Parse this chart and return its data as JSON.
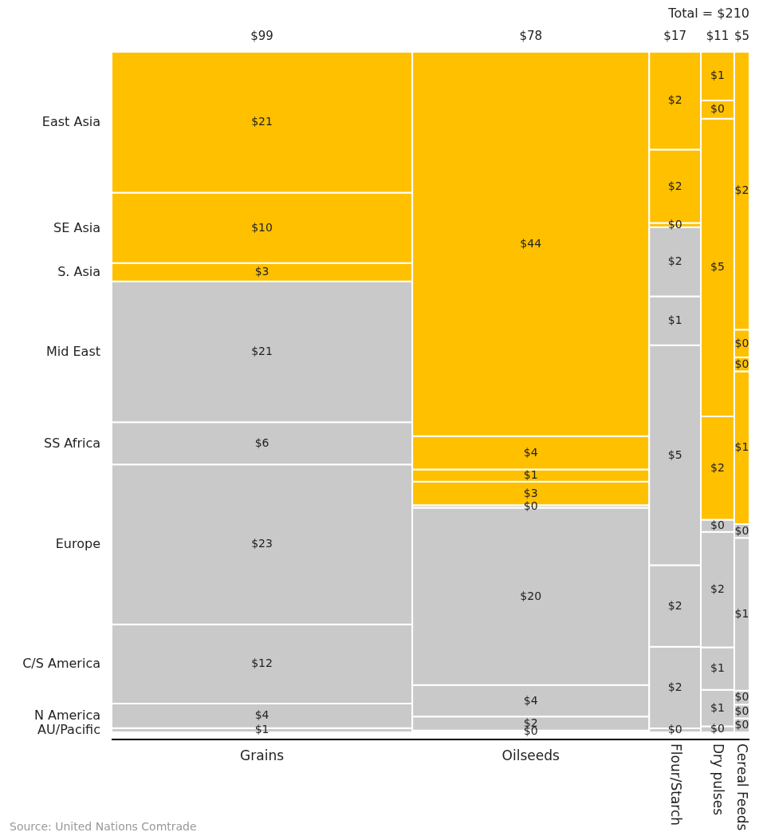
{
  "chart_data": {
    "type": "other",
    "title": "Total = $210",
    "categories": [
      "Grains",
      "Oilseeds",
      "Flour/Starch",
      "Dry pulses",
      "Cereal Feeds"
    ],
    "values": [
      99,
      78,
      17,
      11,
      5
    ],
    "value_labels": [
      "$99",
      "$78",
      "$17",
      "$11",
      "$5"
    ],
    "series": [
      {
        "name": "AU/Pacific",
        "values": [
          0.6,
          0.2,
          0.1,
          0.1,
          0.1
        ],
        "value_labels": [
          "$1",
          "$0",
          "$0",
          "$0",
          "$0"
        ],
        "colors": [
          "#c9c9c9",
          "#c9c9c9",
          "#c9c9c9",
          "#c9c9c9",
          "#c9c9c9"
        ]
      },
      {
        "name": "N America",
        "values": [
          3.6,
          1.6,
          2.0,
          0.6,
          0.1
        ],
        "value_labels": [
          "$4",
          "$2",
          "$2",
          "$1",
          "$0"
        ],
        "colors": [
          "#c9c9c9",
          "#c9c9c9",
          "#c9c9c9",
          "#c9c9c9",
          "#c9c9c9"
        ]
      },
      {
        "name": "C/S America",
        "values": [
          11.6,
          3.6,
          2.0,
          0.7,
          0.1
        ],
        "value_labels": [
          "$12",
          "$4",
          "$2",
          "$1",
          "$0"
        ],
        "colors": [
          "#c9c9c9",
          "#c9c9c9",
          "#c9c9c9",
          "#c9c9c9",
          "#c9c9c9"
        ]
      },
      {
        "name": "Europe",
        "values": [
          23.4,
          20.3,
          5.4,
          1.9,
          1.1
        ],
        "value_labels": [
          "$23",
          "$20",
          "$5",
          "$2",
          "$1"
        ],
        "colors": [
          "#c9c9c9",
          "#c9c9c9",
          "#c9c9c9",
          "#c9c9c9",
          "#c9c9c9"
        ]
      },
      {
        "name": "SS Africa",
        "values": [
          6.2,
          0.3,
          1.2,
          0.2,
          0.1
        ],
        "value_labels": [
          "$6",
          "$0",
          "$1",
          "$0",
          "$0"
        ],
        "colors": [
          "#c9c9c9",
          "#c9c9c9",
          "#c9c9c9",
          "#c9c9c9",
          "#c9c9c9"
        ]
      },
      {
        "name": "Mid East",
        "values": [
          20.6,
          2.7,
          1.7,
          1.7,
          1.1
        ],
        "value_labels": [
          "$21",
          "$3",
          "$2",
          "$2",
          "$1"
        ],
        "colors": [
          "#c9c9c9",
          "#ffc000",
          "#c9c9c9",
          "#ffc000",
          "#ffc000"
        ]
      },
      {
        "name": "S. Asia",
        "values": [
          2.7,
          1.4,
          0.1,
          4.9,
          0.1
        ],
        "value_labels": [
          "$3",
          "$1",
          "$0",
          "$5",
          "$0"
        ],
        "colors": [
          "#ffc000",
          "#ffc000",
          "#ffc000",
          "#ffc000",
          "#ffc000"
        ]
      },
      {
        "name": "SE Asia",
        "values": [
          10.3,
          3.8,
          1.8,
          0.3,
          0.2
        ],
        "value_labels": [
          "$10",
          "$4",
          "$2",
          "$0",
          "$0"
        ],
        "colors": [
          "#ffc000",
          "#ffc000",
          "#ffc000",
          "#ffc000",
          "#ffc000"
        ]
      },
      {
        "name": "East Asia",
        "values": [
          20.6,
          44.0,
          2.4,
          0.8,
          2.0
        ],
        "value_labels": [
          "$21",
          "$44",
          "$2",
          "$1",
          "$2"
        ],
        "colors": [
          "#ffc000",
          "#ffc000",
          "#ffc000",
          "#ffc000",
          "#ffc000"
        ]
      }
    ],
    "annotations": [
      "Source: United Nations Comtrade"
    ]
  }
}
